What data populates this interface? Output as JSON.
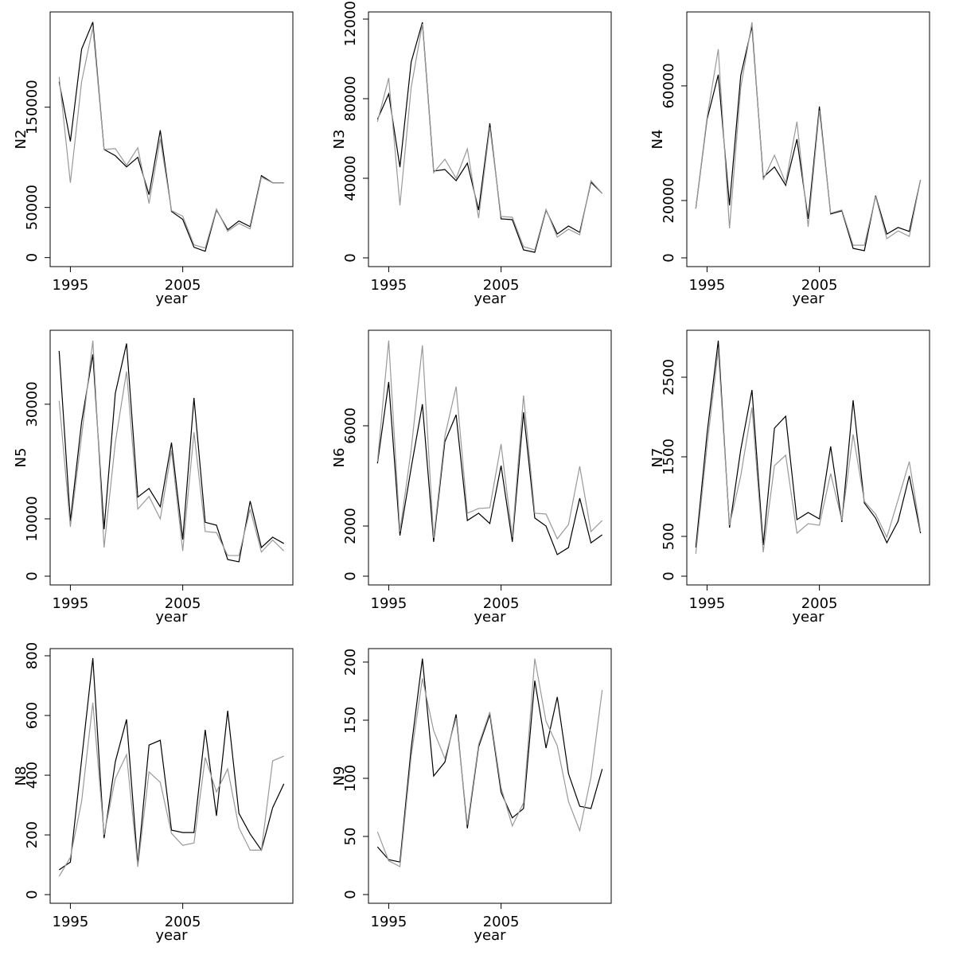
{
  "chart_data": [
    {
      "type": "line",
      "ylabel": "N2",
      "xlabel": "year",
      "x": [
        1994,
        1995,
        1996,
        1997,
        1998,
        1999,
        2000,
        2001,
        2002,
        2003,
        2004,
        2005,
        2006,
        2007,
        2008,
        2009,
        2010,
        2011,
        2012,
        2013,
        2014
      ],
      "xlim": [
        1993.2,
        2014.8
      ],
      "xticks": [
        1995,
        2005
      ],
      "ylim": [
        -9000,
        245000
      ],
      "yticks": [
        0,
        50000,
        150000
      ],
      "series": [
        {
          "color": "#000000",
          "values": [
            175400,
            115900,
            207900,
            234900,
            107900,
            101600,
            90500,
            100000,
            62700,
            127000,
            46000,
            38100,
            10300,
            6300,
            47600,
            27800,
            36500,
            30900,
            81700,
            74600,
            74600
          ]
        },
        {
          "color": "#999999",
          "values": [
            180200,
            74600,
            175400,
            229400,
            107900,
            108700,
            92100,
            109500,
            54000,
            118300,
            46800,
            41300,
            12700,
            9500,
            48400,
            26200,
            34100,
            28600,
            80200,
            74600,
            74600
          ]
        }
      ]
    },
    {
      "type": "line",
      "ylabel": "N3",
      "xlabel": "year",
      "x": [
        1994,
        1995,
        1996,
        1997,
        1998,
        1999,
        2000,
        2001,
        2002,
        2003,
        2004,
        2005,
        2006,
        2007,
        2008,
        2009,
        2010,
        2011,
        2012,
        2013,
        2014
      ],
      "xlim": [
        1993.2,
        2014.8
      ],
      "xticks": [
        1995,
        2005
      ],
      "ylim": [
        -4400,
        123600
      ],
      "yticks": [
        0,
        40000,
        80000,
        120000
      ],
      "series": [
        {
          "color": "#000000",
          "values": [
            69600,
            82400,
            45600,
            98400,
            118400,
            43600,
            44400,
            38800,
            47600,
            24000,
            67600,
            19600,
            19200,
            4000,
            2800,
            24000,
            12000,
            16000,
            12800,
            38000,
            32400
          ]
        },
        {
          "color": "#999999",
          "values": [
            68400,
            90400,
            26400,
            85600,
            117600,
            42800,
            49600,
            40000,
            54800,
            20000,
            65600,
            20800,
            20400,
            5600,
            4000,
            24400,
            10400,
            14400,
            11600,
            38800,
            32400
          ]
        }
      ]
    },
    {
      "type": "line",
      "ylabel": "N4",
      "xlabel": "year",
      "x": [
        1994,
        1995,
        1996,
        1997,
        1998,
        1999,
        2000,
        2001,
        2002,
        2003,
        2004,
        2005,
        2006,
        2007,
        2008,
        2009,
        2010,
        2011,
        2012,
        2013,
        2014
      ],
      "xlim": [
        1993.2,
        2014.8
      ],
      "xticks": [
        1995,
        2005
      ],
      "ylim": [
        -3060,
        85800
      ],
      "yticks": [
        0,
        20000,
        60000
      ],
      "series": [
        {
          "color": "#000000",
          "values": [
            17200,
            48300,
            63900,
            18300,
            63600,
            80800,
            28100,
            31700,
            25300,
            41400,
            13600,
            52800,
            15300,
            16400,
            3300,
            2500,
            21700,
            8300,
            10600,
            9200,
            27200
          ]
        },
        {
          "color": "#999999",
          "values": [
            17200,
            48900,
            72800,
            10300,
            59400,
            82200,
            27200,
            35800,
            26100,
            47500,
            10800,
            51400,
            15600,
            16700,
            4400,
            4400,
            21400,
            6700,
            9400,
            7500,
            27200
          ]
        }
      ]
    },
    {
      "type": "line",
      "ylabel": "N5",
      "xlabel": "year",
      "x": [
        1994,
        1995,
        1996,
        1997,
        1998,
        1999,
        2000,
        2001,
        2002,
        2003,
        2004,
        2005,
        2006,
        2007,
        2008,
        2009,
        2010,
        2011,
        2012,
        2013,
        2014
      ],
      "xlim": [
        1993.2,
        2014.8
      ],
      "xticks": [
        1995,
        2005
      ],
      "ylim": [
        -1530,
        42900
      ],
      "yticks": [
        0,
        10000,
        30000
      ],
      "series": [
        {
          "color": "#000000",
          "values": [
            39300,
            9600,
            26900,
            38700,
            8200,
            31900,
            40600,
            13800,
            15300,
            12100,
            23300,
            6400,
            31100,
            9400,
            8900,
            2900,
            2500,
            13100,
            5000,
            6800,
            5700
          ]
        },
        {
          "color": "#999999",
          "values": [
            30600,
            8600,
            24400,
            41100,
            5000,
            23300,
            35700,
            11700,
            13900,
            10000,
            21900,
            4400,
            25100,
            7800,
            7600,
            3600,
            3600,
            11700,
            4200,
            6300,
            4400
          ]
        }
      ]
    },
    {
      "type": "line",
      "ylabel": "N6",
      "xlabel": "year",
      "x": [
        1994,
        1995,
        1996,
        1997,
        1998,
        1999,
        2000,
        2001,
        2002,
        2003,
        2004,
        2005,
        2006,
        2007,
        2008,
        2009,
        2010,
        2011,
        2012,
        2013,
        2014
      ],
      "xlim": [
        1993.2,
        2014.8
      ],
      "xticks": [
        1995,
        2005
      ],
      "ylim": [
        -350,
        9810
      ],
      "yticks": [
        0,
        2000,
        6000
      ],
      "series": [
        {
          "color": "#000000",
          "values": [
            4500,
            7750,
            1620,
            4320,
            6860,
            1370,
            5370,
            6440,
            2220,
            2510,
            2100,
            4410,
            1370,
            6540,
            2320,
            2000,
            860,
            1140,
            3110,
            1330,
            1650
          ]
        },
        {
          "color": "#999999",
          "values": [
            4570,
            9400,
            1780,
            5050,
            9210,
            1520,
            5590,
            7560,
            2510,
            2700,
            2730,
            5270,
            1560,
            7210,
            2510,
            2480,
            1490,
            2060,
            4380,
            1780,
            2220
          ]
        }
      ]
    },
    {
      "type": "line",
      "ylabel": "N7",
      "xlabel": "year",
      "x": [
        1994,
        1995,
        1996,
        1997,
        1998,
        1999,
        2000,
        2001,
        2002,
        2003,
        2004,
        2005,
        2006,
        2007,
        2008,
        2009,
        2010,
        2011,
        2012,
        2013,
        2014
      ],
      "xlim": [
        1993.2,
        2014.8
      ],
      "xticks": [
        1995,
        2005
      ],
      "ylim": [
        -110,
        3090
      ],
      "yticks": [
        0,
        500,
        1500,
        2500
      ],
      "series": [
        {
          "color": "#000000",
          "values": [
            360,
            1790,
            2960,
            610,
            1590,
            2340,
            390,
            1860,
            2010,
            710,
            800,
            720,
            1630,
            680,
            2210,
            920,
            730,
            420,
            690,
            1260,
            540
          ]
        },
        {
          "color": "#999999",
          "values": [
            280,
            1640,
            2840,
            640,
            1260,
            2120,
            300,
            1390,
            1520,
            540,
            660,
            640,
            1290,
            700,
            1780,
            940,
            780,
            490,
            960,
            1440,
            560
          ]
        }
      ]
    },
    {
      "type": "line",
      "ylabel": "N8",
      "xlabel": "year",
      "x": [
        1994,
        1995,
        1996,
        1997,
        1998,
        1999,
        2000,
        2001,
        2002,
        2003,
        2004,
        2005,
        2006,
        2007,
        2008,
        2009,
        2010,
        2011,
        2012,
        2013,
        2014
      ],
      "xlim": [
        1993.2,
        2014.8
      ],
      "xticks": [
        1995,
        2005
      ],
      "ylim": [
        -29,
        824
      ],
      "yticks": [
        0,
        200,
        400,
        600,
        800
      ],
      "series": [
        {
          "color": "#000000",
          "values": [
            83,
            109,
            451,
            792,
            189,
            445,
            587,
            101,
            501,
            517,
            216,
            208,
            208,
            552,
            264,
            616,
            272,
            203,
            149,
            291,
            371
          ]
        },
        {
          "color": "#999999",
          "values": [
            61,
            125,
            312,
            643,
            200,
            389,
            469,
            93,
            411,
            376,
            205,
            165,
            173,
            459,
            344,
            421,
            224,
            149,
            149,
            448,
            464
          ]
        }
      ]
    },
    {
      "type": "line",
      "ylabel": "N9",
      "xlabel": "year",
      "x": [
        1994,
        1995,
        1996,
        1997,
        1998,
        1999,
        2000,
        2001,
        2002,
        2003,
        2004,
        2005,
        2006,
        2007,
        2008,
        2009,
        2010,
        2011,
        2012,
        2013,
        2014
      ],
      "xlim": [
        1993.2,
        2014.8
      ],
      "xticks": [
        1995,
        2005
      ],
      "ylim": [
        -7.5,
        211.6
      ],
      "yticks": [
        0,
        50,
        100,
        150,
        200
      ],
      "series": [
        {
          "color": "#000000",
          "values": [
            41,
            30,
            28,
            126,
            203,
            102,
            114,
            155,
            57,
            127,
            155,
            88,
            66,
            74,
            184,
            126,
            170,
            104,
            76,
            74,
            108
          ]
        },
        {
          "color": "#999999",
          "values": [
            54,
            29,
            24,
            119,
            186,
            141,
            117,
            152,
            60,
            129,
            157,
            92,
            59,
            79,
            203,
            149,
            128,
            80,
            55,
            101,
            176
          ]
        }
      ]
    }
  ]
}
